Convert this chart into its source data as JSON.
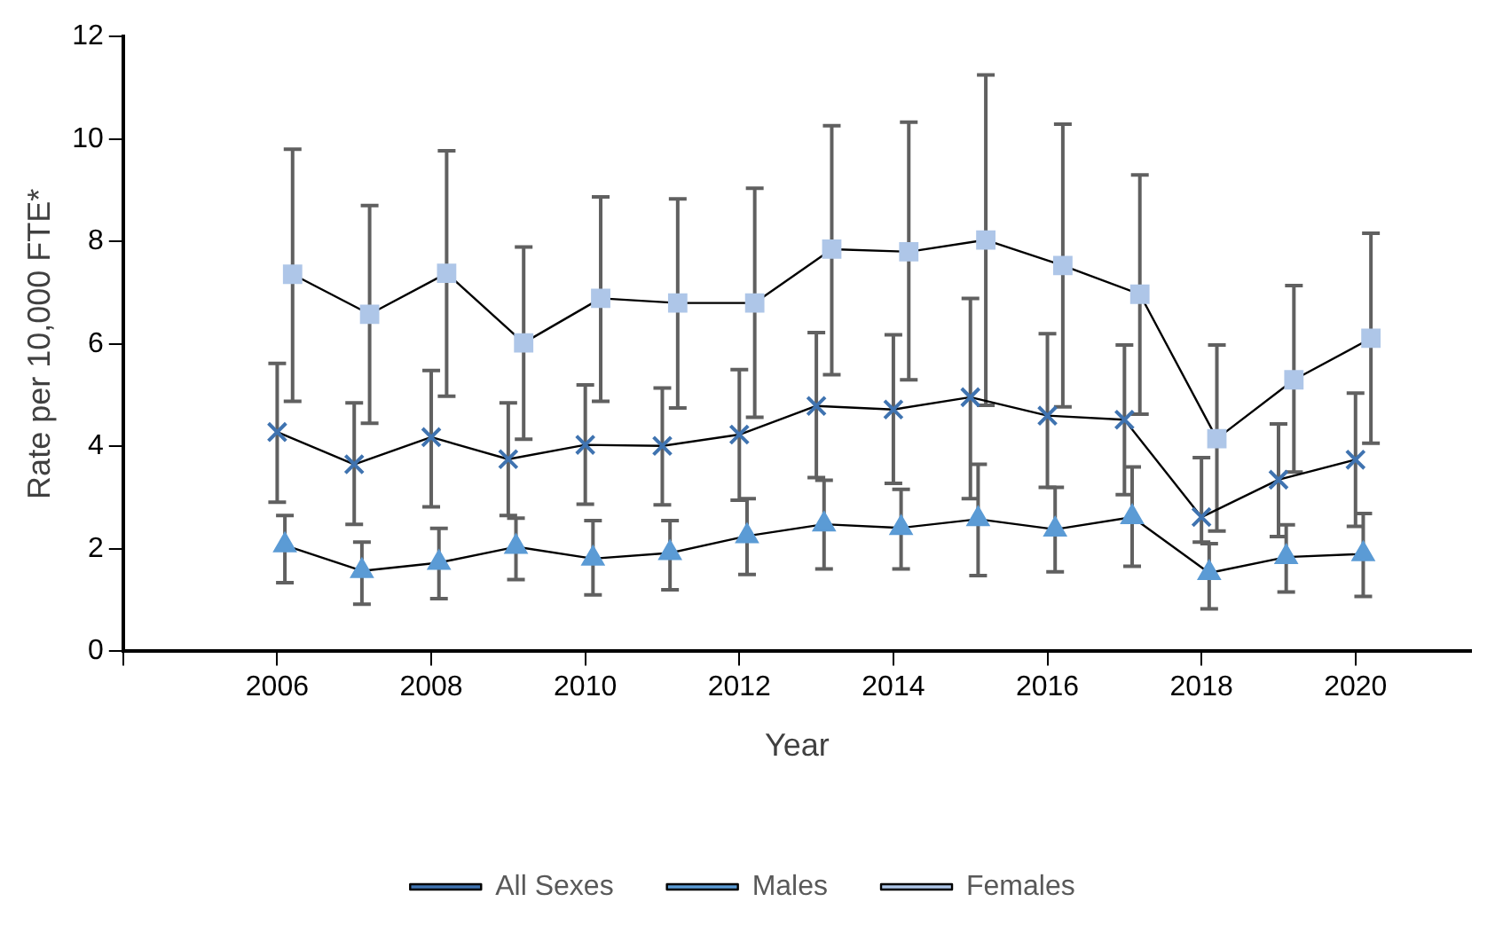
{
  "chart_data": {
    "type": "line",
    "xlabel": "Year",
    "ylabel": "Rate per 10,000 FTE*",
    "x": [
      2006,
      2007,
      2008,
      2009,
      2010,
      2011,
      2012,
      2013,
      2014,
      2015,
      2016,
      2017,
      2018,
      2019,
      2020
    ],
    "xlim": [
      2004,
      2021.5
    ],
    "xticks": [
      {
        "value": 2004,
        "label": null
      },
      2006,
      2008,
      2010,
      2012,
      2014,
      2016,
      2018,
      2020
    ],
    "ylim": [
      0,
      12
    ],
    "yticks": [
      0,
      2,
      4,
      6,
      8,
      10,
      12
    ],
    "grid": false,
    "legend": "bottom",
    "line_style": "solid",
    "series": [
      {
        "name": "All Sexes",
        "color": "#3f73b0",
        "marker": "cross",
        "values": [
          4.28,
          3.65,
          4.18,
          3.75,
          4.03,
          4.01,
          4.23,
          4.79,
          4.72,
          4.96,
          4.6,
          4.52,
          2.62,
          3.35,
          3.74
        ],
        "errors": [
          [
            2.91,
            5.62
          ],
          [
            2.48,
            4.85
          ],
          [
            2.82,
            5.48
          ],
          [
            2.65,
            4.85
          ],
          [
            2.87,
            5.2
          ],
          [
            2.86,
            5.14
          ],
          [
            2.95,
            5.5
          ],
          [
            3.39,
            6.22
          ],
          [
            3.28,
            6.18
          ],
          [
            2.98,
            6.89
          ],
          [
            3.2,
            6.2
          ],
          [
            3.06,
            5.98
          ],
          [
            2.13,
            3.78
          ],
          [
            2.24,
            4.44
          ],
          [
            2.44,
            5.04
          ]
        ]
      },
      {
        "name": "Males",
        "color": "#5b9bd5",
        "marker": "triangle",
        "x": [
          2006.1,
          2007.1,
          2008.1,
          2009.1,
          2010.1,
          2011.1,
          2012.1,
          2013.1,
          2014.1,
          2015.1,
          2016.1,
          2017.1,
          2018.1,
          2019.1,
          2020.1
        ],
        "values": [
          2.07,
          1.57,
          1.73,
          2.04,
          1.81,
          1.92,
          2.25,
          2.48,
          2.41,
          2.58,
          2.38,
          2.62,
          1.53,
          1.84,
          1.9
        ],
        "errors": [
          [
            1.34,
            2.65
          ],
          [
            0.92,
            2.13
          ],
          [
            1.03,
            2.4
          ],
          [
            1.4,
            2.6
          ],
          [
            1.1,
            2.55
          ],
          [
            1.2,
            2.55
          ],
          [
            1.5,
            2.98
          ],
          [
            1.61,
            3.34
          ],
          [
            1.61,
            3.16
          ],
          [
            1.48,
            3.65
          ],
          [
            1.55,
            3.2
          ],
          [
            1.66,
            3.6
          ],
          [
            0.83,
            2.1
          ],
          [
            1.16,
            2.47
          ],
          [
            1.07,
            2.69
          ]
        ]
      },
      {
        "name": "Females",
        "color": "#aec6e8",
        "marker": "square",
        "x": [
          2006.2,
          2007.2,
          2008.2,
          2009.2,
          2010.2,
          2011.2,
          2012.2,
          2013.2,
          2014.2,
          2015.2,
          2016.2,
          2017.2,
          2018.2,
          2019.2,
          2020.2
        ],
        "values": [
          7.36,
          6.58,
          7.38,
          6.02,
          6.89,
          6.8,
          6.8,
          7.85,
          7.8,
          8.03,
          7.53,
          6.97,
          4.15,
          5.3,
          6.11
        ],
        "errors": [
          [
            4.88,
            9.8
          ],
          [
            4.45,
            8.7
          ],
          [
            4.98,
            9.77
          ],
          [
            4.14,
            7.89
          ],
          [
            4.88,
            8.87
          ],
          [
            4.75,
            8.83
          ],
          [
            4.57,
            9.04
          ],
          [
            5.4,
            10.26
          ],
          [
            5.3,
            10.33
          ],
          [
            4.8,
            11.25
          ],
          [
            4.77,
            10.29
          ],
          [
            4.63,
            9.3
          ],
          [
            2.35,
            5.98
          ],
          [
            3.5,
            7.14
          ],
          [
            4.06,
            8.16
          ]
        ]
      }
    ]
  }
}
